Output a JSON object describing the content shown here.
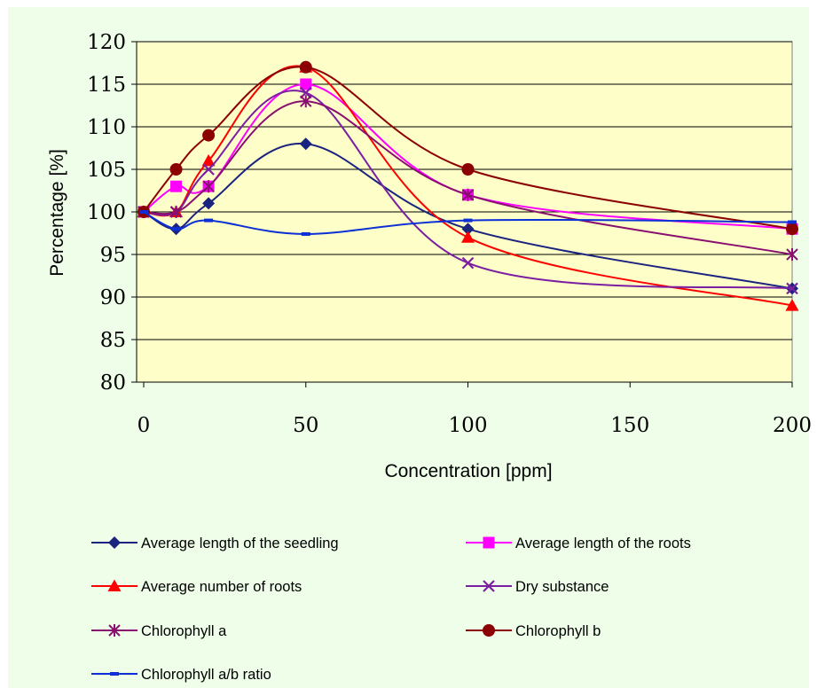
{
  "chart_data": {
    "type": "line",
    "title": "",
    "xlabel": "Concentration [ppm]",
    "ylabel": "Percentage [%]",
    "xlim": [
      0,
      200
    ],
    "ylim": [
      80,
      120
    ],
    "xticks": [
      0,
      50,
      100,
      150,
      200
    ],
    "yticks": [
      80,
      85,
      90,
      95,
      100,
      105,
      110,
      115,
      120
    ],
    "x": [
      0,
      10,
      20,
      50,
      100,
      200
    ],
    "grid": "horizontal",
    "legend_position": "bottom",
    "series": [
      {
        "name": "Average length of the seedling",
        "color": "#1a237e",
        "marker": "diamond",
        "values": [
          100,
          98,
          101,
          108,
          98,
          91
        ]
      },
      {
        "name": "Average length of the roots",
        "color": "#ff00ff",
        "marker": "square",
        "values": [
          100,
          103,
          103,
          115,
          102,
          98
        ]
      },
      {
        "name": "Average number of roots",
        "color": "#ff0000",
        "marker": "triangle",
        "values": [
          100,
          100,
          106,
          117,
          97,
          89
        ]
      },
      {
        "name": "Dry substance",
        "color": "#7b1fa2",
        "marker": "x",
        "values": [
          100,
          100,
          105,
          114,
          94,
          91
        ]
      },
      {
        "name": "Chlorophyll a",
        "color": "#880e6f",
        "marker": "star",
        "values": [
          100,
          100,
          103,
          113,
          102,
          95
        ]
      },
      {
        "name": "Chlorophyll b",
        "color": "#8b0000",
        "marker": "circle",
        "values": [
          100,
          105,
          109,
          117,
          105,
          98
        ]
      },
      {
        "name": "Chlorophyll a/b ratio",
        "color": "#0d2fd6",
        "marker": "dash",
        "values": [
          100,
          98,
          99,
          97.4,
          99,
          98.8
        ]
      }
    ]
  }
}
